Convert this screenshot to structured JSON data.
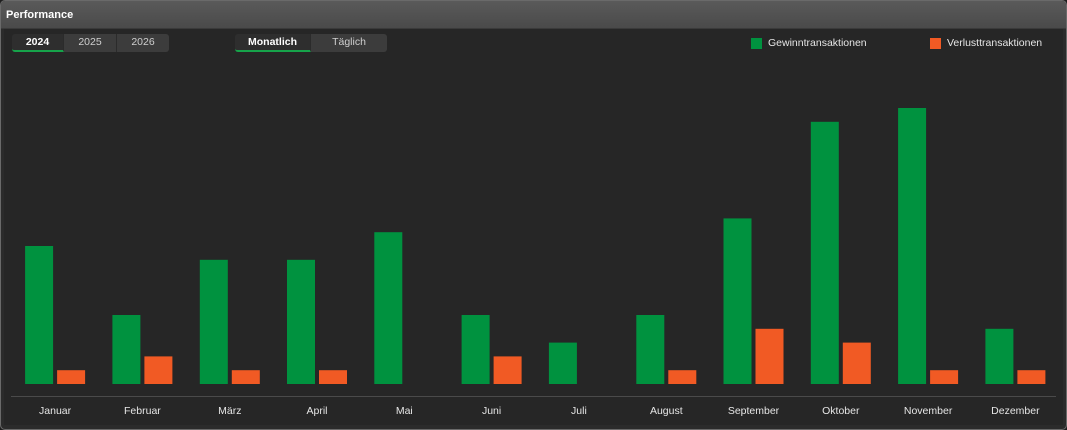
{
  "panel": {
    "title": "Performance"
  },
  "year_tabs": [
    {
      "label": "2024",
      "active": true
    },
    {
      "label": "2025",
      "active": false
    },
    {
      "label": "2026",
      "active": false
    }
  ],
  "mode_tabs": [
    {
      "label": "Monatlich",
      "active": true
    },
    {
      "label": "Täglich",
      "active": false
    }
  ],
  "colors": {
    "win": "#00923f",
    "loss": "#f15a24"
  },
  "chart_data": {
    "type": "bar",
    "categories": [
      "Januar",
      "Februar",
      "März",
      "April",
      "Mai",
      "Juni",
      "Juli",
      "August",
      "September",
      "Oktober",
      "November",
      "Dezember"
    ],
    "series": [
      {
        "name": "Gewinntransaktionen",
        "values": [
          10,
          5,
          9,
          9,
          11,
          5,
          3,
          5,
          12,
          19,
          20,
          4
        ]
      },
      {
        "name": "Verlusttransaktionen",
        "values": [
          1,
          2,
          1,
          1,
          0,
          2,
          0,
          1,
          4,
          3,
          1,
          1
        ]
      }
    ],
    "ylim": [
      0,
      20
    ],
    "grid": false,
    "legend": "top-right"
  }
}
